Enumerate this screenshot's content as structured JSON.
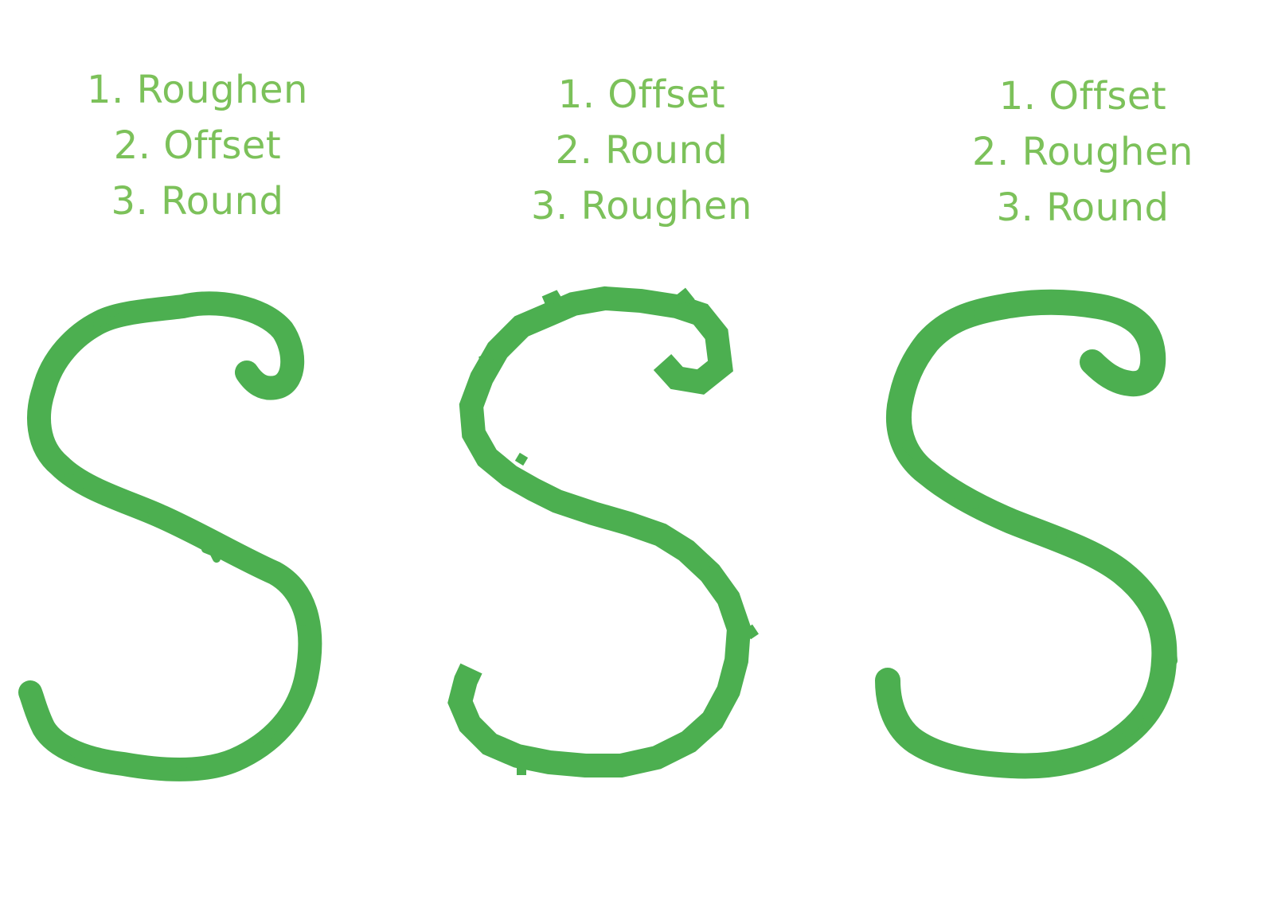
{
  "accent_color": "#4caf50",
  "text_color": "#7cc15a",
  "variants": [
    {
      "steps": [
        "1. Roughen",
        "2. Offset",
        "3. Round"
      ],
      "edge_style": "rounded-wobble"
    },
    {
      "steps": [
        "1. Offset",
        "2. Round",
        "3. Roughen"
      ],
      "edge_style": "jagged-angular"
    },
    {
      "steps": [
        "1. Offset",
        "2. Roughen",
        "3. Round"
      ],
      "edge_style": "rounded-blobby"
    }
  ]
}
